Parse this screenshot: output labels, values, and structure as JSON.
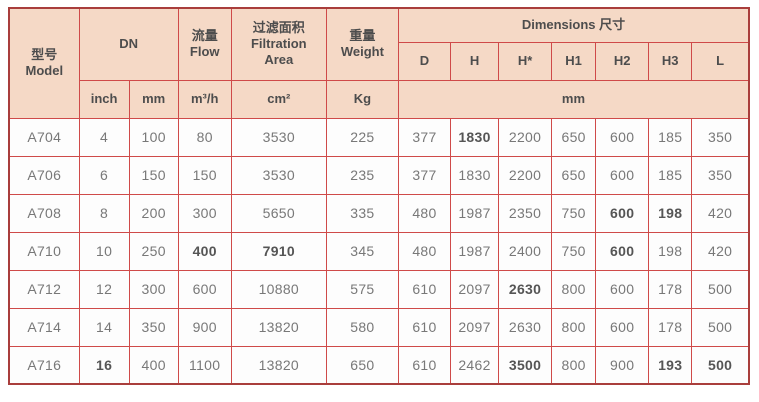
{
  "table": {
    "header": {
      "model": "型号\nModel",
      "dn": "DN",
      "flow": "流量\nFlow",
      "filtration_area": "过滤面积\nFiltration\nArea",
      "weight": "重量\nWeight",
      "dimensions": "Dimensions 尺寸",
      "dimension_columns": [
        "D",
        "H",
        "H*",
        "H1",
        "H2",
        "H3",
        "L"
      ],
      "units": {
        "dn_inch": "inch",
        "dn_mm": "mm",
        "flow": "m³/h",
        "filtration_area": "cm²",
        "weight": "Kg",
        "dimensions": "mm"
      }
    },
    "rows": [
      [
        "A704",
        "4",
        "100",
        "80",
        "3530",
        "225",
        "377",
        "1830",
        "2200",
        "650",
        "600",
        "185",
        "350"
      ],
      [
        "A706",
        "6",
        "150",
        "150",
        "3530",
        "235",
        "377",
        "1830",
        "2200",
        "650",
        "600",
        "185",
        "350"
      ],
      [
        "A708",
        "8",
        "200",
        "300",
        "5650",
        "335",
        "480",
        "1987",
        "2350",
        "750",
        "600",
        "198",
        "420"
      ],
      [
        "A710",
        "10",
        "250",
        "400",
        "7910",
        "345",
        "480",
        "1987",
        "2400",
        "750",
        "600",
        "198",
        "420"
      ],
      [
        "A712",
        "12",
        "300",
        "600",
        "10880",
        "575",
        "610",
        "2097",
        "2630",
        "800",
        "600",
        "178",
        "500"
      ],
      [
        "A714",
        "14",
        "350",
        "900",
        "13820",
        "580",
        "610",
        "2097",
        "2630",
        "800",
        "600",
        "178",
        "500"
      ],
      [
        "A716",
        "16",
        "400",
        "1100",
        "13820",
        "650",
        "610",
        "2462",
        "3500",
        "800",
        "900",
        "193",
        "500"
      ]
    ],
    "bold_cells": [
      [
        0,
        7
      ],
      [
        2,
        10
      ],
      [
        2,
        11
      ],
      [
        3,
        3
      ],
      [
        3,
        4
      ],
      [
        3,
        10
      ],
      [
        4,
        8
      ],
      [
        6,
        1
      ],
      [
        6,
        8
      ],
      [
        6,
        11
      ],
      [
        6,
        12
      ]
    ]
  },
  "colors": {
    "header_bg": "#f5d9c6",
    "grid_border": "#cf4a49",
    "outer_border": "#a93e3c",
    "header_text": "#4d4d4d",
    "body_text": "#787878"
  }
}
